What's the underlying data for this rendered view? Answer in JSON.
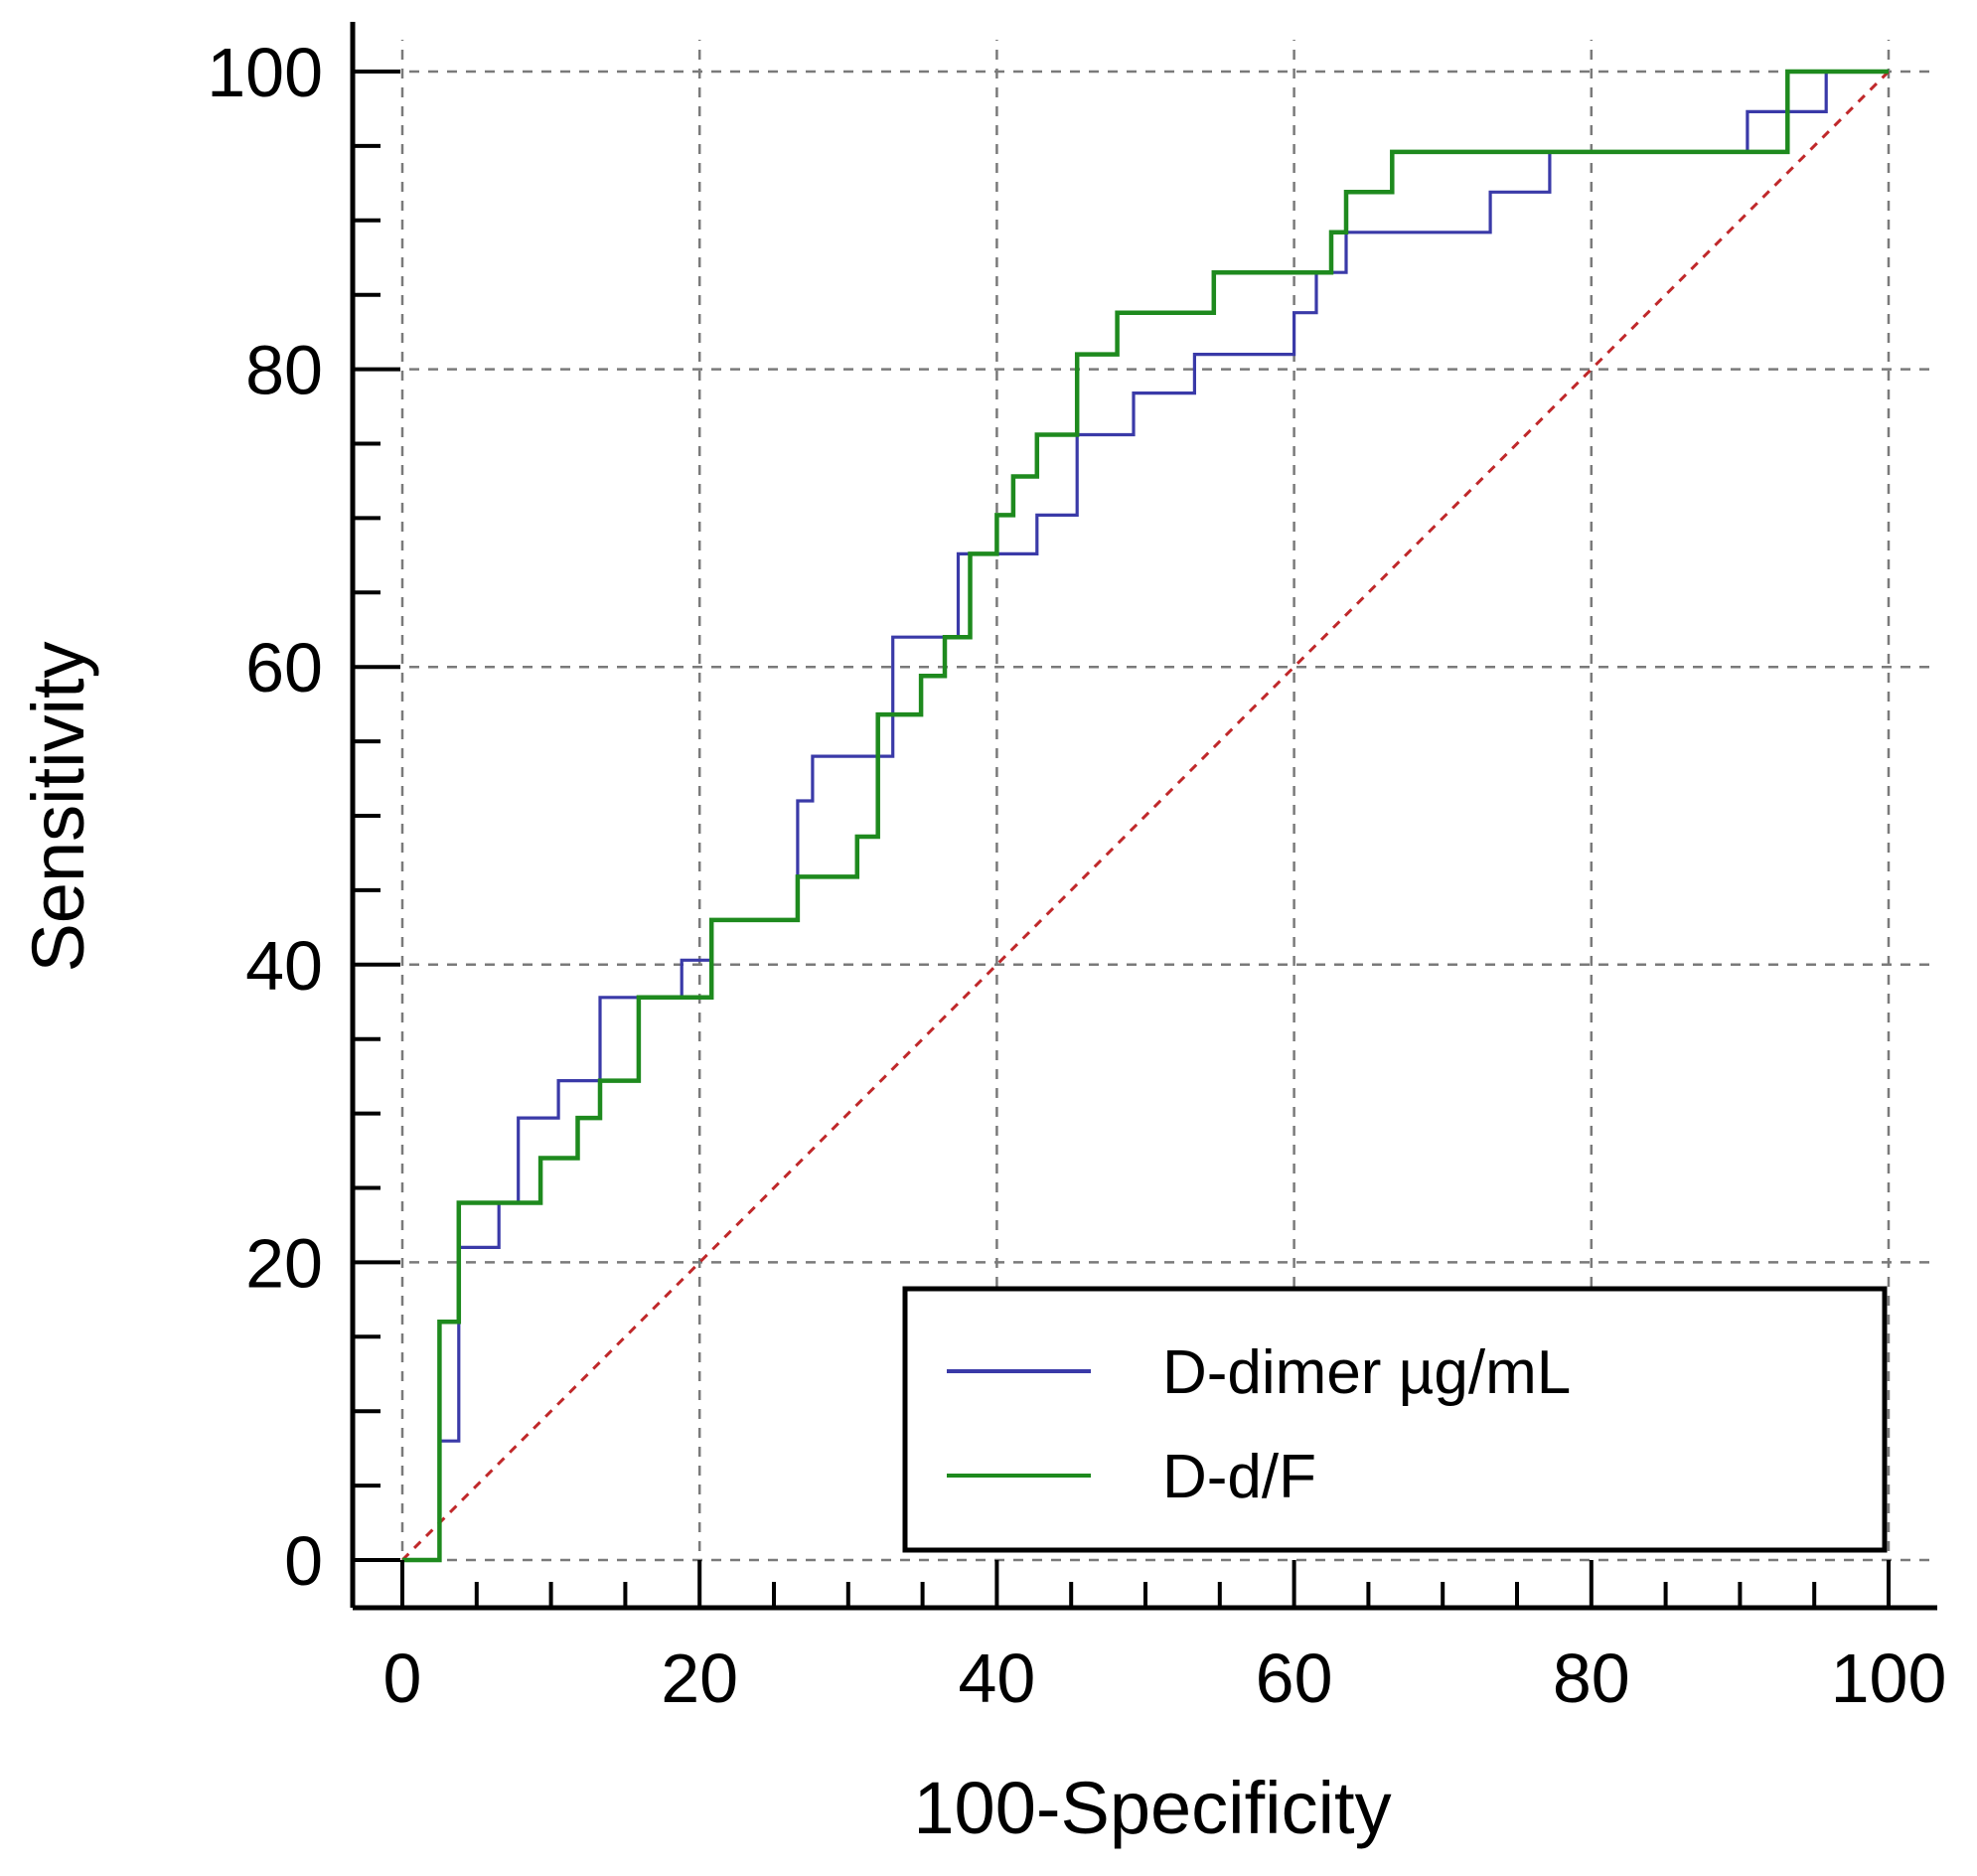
{
  "chart_data": {
    "type": "line",
    "title": "",
    "xlabel": "100-Specificity",
    "ylabel": "Sensitivity",
    "xlim": [
      0,
      100
    ],
    "ylim": [
      0,
      100
    ],
    "x_ticks": [
      0,
      20,
      40,
      60,
      80,
      100
    ],
    "y_ticks": [
      0,
      20,
      40,
      60,
      80,
      100
    ],
    "grid": true,
    "legend_position": "bottom-right",
    "series": [
      {
        "name": "D-dimer µg/mL",
        "color": "#3a3aa8",
        "x": [
          0,
          2.5,
          2.5,
          3.8,
          3.8,
          6.5,
          6.5,
          7.8,
          7.8,
          10.5,
          10.5,
          13.3,
          13.3,
          18.8,
          18.8,
          20.8,
          20.8,
          26.6,
          26.6,
          27.6,
          27.6,
          33.0,
          33.0,
          36.5,
          36.5,
          37.4,
          37.4,
          42.7,
          42.7,
          45.4,
          45.4,
          49.2,
          49.2,
          53.3,
          53.3,
          60.0,
          60.0,
          61.5,
          61.5,
          63.5,
          63.5,
          73.2,
          73.2,
          77.2,
          77.2,
          90.5,
          90.5,
          95.8,
          95.8,
          100
        ],
        "y": [
          0,
          0,
          8,
          8,
          21,
          21,
          24,
          24,
          29.7,
          29.7,
          32.2,
          32.2,
          37.8,
          37.8,
          40.3,
          40.3,
          43,
          43,
          51,
          51,
          54,
          54,
          62,
          62,
          62,
          62,
          67.6,
          67.6,
          70.2,
          70.2,
          75.6,
          75.6,
          78.4,
          78.4,
          81,
          81,
          83.8,
          83.8,
          86.5,
          86.5,
          89.2,
          89.2,
          91.9,
          91.9,
          94.6,
          94.6,
          97.3,
          97.3,
          100,
          100
        ]
      },
      {
        "name": "D-d/F",
        "color": "#1e8a1e",
        "x": [
          0,
          2.5,
          2.5,
          3.8,
          3.8,
          9.3,
          9.3,
          11.8,
          11.8,
          13.3,
          13.3,
          15.9,
          15.9,
          20.8,
          20.8,
          26.6,
          26.6,
          30.6,
          30.6,
          32.0,
          32.0,
          34.0,
          34.0,
          34.9,
          34.9,
          36.5,
          36.5,
          38.2,
          38.2,
          40.0,
          40.0,
          41.1,
          41.1,
          42.7,
          42.7,
          45.4,
          45.4,
          48.1,
          48.1,
          54.6,
          54.6,
          62.5,
          62.5,
          63.5,
          63.5,
          66.6,
          66.6,
          93.2,
          93.2,
          100
        ],
        "y": [
          0,
          0,
          16,
          16,
          24,
          24,
          27,
          27,
          29.7,
          29.7,
          32.2,
          32.2,
          37.8,
          37.8,
          43,
          43,
          45.9,
          45.9,
          48.6,
          48.6,
          56.8,
          56.8,
          56.8,
          56.8,
          59.4,
          59.4,
          62,
          62,
          67.6,
          67.6,
          70.2,
          70.2,
          72.8,
          72.8,
          75.6,
          75.6,
          81,
          81,
          83.8,
          83.8,
          86.5,
          86.5,
          89.2,
          89.2,
          91.9,
          91.9,
          94.6,
          94.6,
          100,
          100
        ]
      }
    ],
    "reference_line": {
      "x": [
        0,
        100
      ],
      "y": [
        0,
        100
      ],
      "color": "#c0282a"
    }
  }
}
